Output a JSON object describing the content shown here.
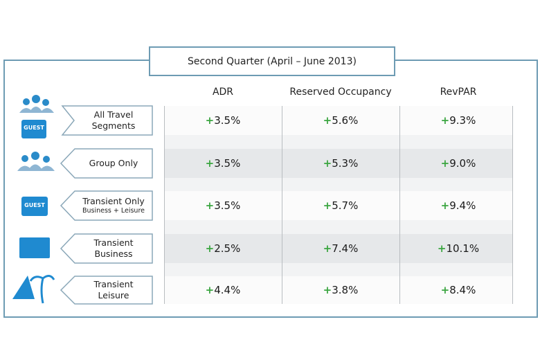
{
  "title": "Second Quarter (April – June 2013)",
  "columns": [
    "ADR",
    "Reserved Occupancy",
    "RevPAR"
  ],
  "rows": [
    {
      "label": [
        "All Travel",
        "Segments"
      ],
      "cells": [
        "+3.5%",
        "+5.6%",
        "+9.3%"
      ]
    },
    {
      "label": [
        "Group Only"
      ],
      "cells": [
        "+3.5%",
        "+5.3%",
        "+9.0%"
      ]
    },
    {
      "label": [
        "Transient Only"
      ],
      "sublabel": "Business + Leisure",
      "cells": [
        "+3.5%",
        "+5.7%",
        "+9.4%"
      ]
    },
    {
      "label": [
        "Transient",
        "Business"
      ],
      "cells": [
        "+2.5%",
        "+7.4%",
        "+10.1%"
      ]
    },
    {
      "label": [
        "Transient",
        "Leisure"
      ],
      "cells": [
        "+4.4%",
        "+3.8%",
        "+8.4%"
      ]
    }
  ],
  "icon_text": "GUEST"
}
